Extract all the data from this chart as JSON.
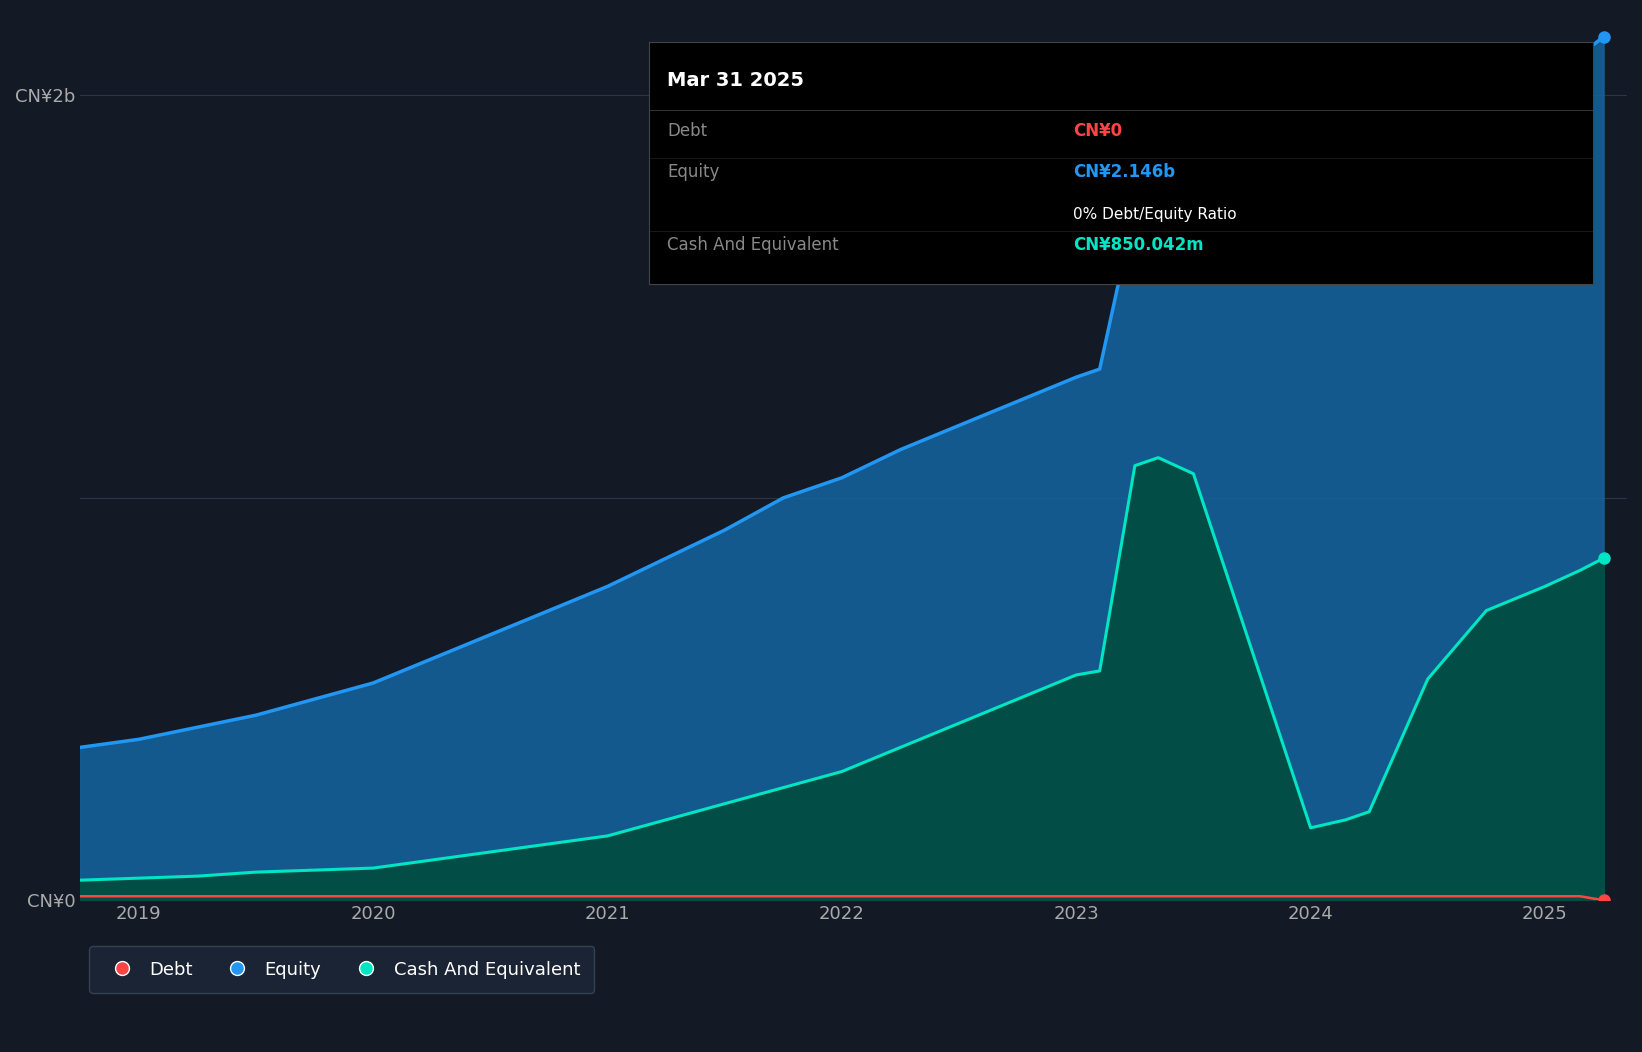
{
  "bg_color": "#131a25",
  "plot_bg_color": "#131a25",
  "grid_color": "#2a3548",
  "equity_color": "#2196f3",
  "equity_fill": "#1565a0",
  "cash_color": "#00e5c3",
  "cash_fill": "#004d40",
  "debt_color": "#ff4444",
  "legend_bg": "#1e2738",
  "x_dates": [
    2018.75,
    2019.0,
    2019.25,
    2019.5,
    2019.75,
    2020.0,
    2020.25,
    2020.5,
    2020.75,
    2021.0,
    2021.25,
    2021.5,
    2021.75,
    2022.0,
    2022.25,
    2022.5,
    2022.75,
    2023.0,
    2023.1,
    2023.25,
    2023.35,
    2023.5,
    2023.75,
    2024.0,
    2024.15,
    2024.25,
    2024.5,
    2024.75,
    2025.0,
    2025.15,
    2025.25
  ],
  "equity": [
    0.38,
    0.4,
    0.43,
    0.46,
    0.5,
    0.54,
    0.6,
    0.66,
    0.72,
    0.78,
    0.85,
    0.92,
    1.0,
    1.05,
    1.12,
    1.18,
    1.24,
    1.3,
    1.32,
    1.72,
    1.74,
    1.76,
    1.78,
    1.8,
    1.83,
    1.86,
    1.92,
    1.98,
    2.04,
    2.1,
    2.146
  ],
  "cash": [
    0.05,
    0.055,
    0.06,
    0.07,
    0.075,
    0.08,
    0.1,
    0.12,
    0.14,
    0.16,
    0.2,
    0.24,
    0.28,
    0.32,
    0.38,
    0.44,
    0.5,
    0.56,
    0.57,
    1.08,
    1.1,
    1.06,
    0.62,
    0.18,
    0.2,
    0.22,
    0.55,
    0.72,
    0.78,
    0.82,
    0.850042
  ],
  "debt": [
    0.01,
    0.01,
    0.01,
    0.01,
    0.01,
    0.01,
    0.01,
    0.01,
    0.01,
    0.01,
    0.01,
    0.01,
    0.01,
    0.01,
    0.01,
    0.01,
    0.01,
    0.01,
    0.01,
    0.01,
    0.01,
    0.01,
    0.01,
    0.01,
    0.01,
    0.01,
    0.01,
    0.01,
    0.01,
    0.01,
    0.0
  ],
  "ylim": [
    0,
    2.2
  ],
  "xticks": [
    2019,
    2020,
    2021,
    2022,
    2023,
    2024,
    2025
  ],
  "xtick_labels": [
    "2019",
    "2020",
    "2021",
    "2022",
    "2023",
    "2024",
    "2025"
  ],
  "tooltip": {
    "title": "Mar 31 2025",
    "debt_label": "Debt",
    "debt_value": "CN¥0",
    "equity_label": "Equity",
    "equity_value": "CN¥2.146b",
    "ratio_text": "0% Debt/Equity Ratio",
    "cash_label": "Cash And Equivalent",
    "cash_value": "CN¥850.042m"
  }
}
